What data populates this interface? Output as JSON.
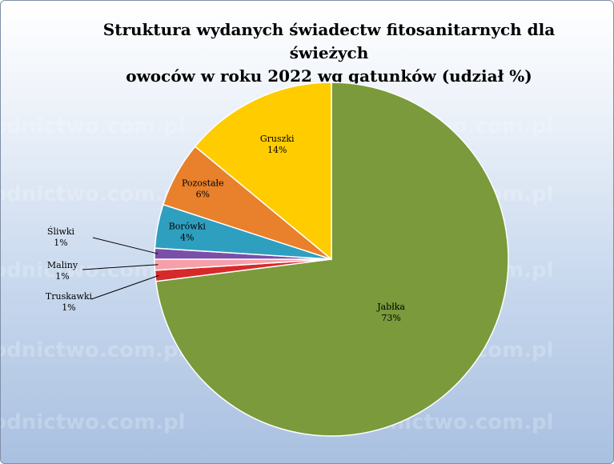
{
  "chart_data": {
    "type": "pie",
    "title": "Struktura wydanych świadectw fitosanitarnych dla świeżych owoców w roku 2022  wg gatunków (udział %)",
    "title_lines": [
      "Struktura wydanych świadectw fitosanitarnych dla świeżych",
      "owoców w roku 2022  wg gatunków (udział %)"
    ],
    "slices": [
      {
        "name": "Jabłka",
        "value": 73,
        "label": "73%",
        "color": "#7a9a3c"
      },
      {
        "name": "Truskawki",
        "value": 1,
        "label": "1%",
        "color": "#d62a2a"
      },
      {
        "name": "Maliny",
        "value": 1,
        "label": "1%",
        "color": "#f5a0a8"
      },
      {
        "name": "Śliwki",
        "value": 1,
        "label": "1%",
        "color": "#7a4fa8"
      },
      {
        "name": "Borówki",
        "value": 4,
        "label": "4%",
        "color": "#2e9fbf"
      },
      {
        "name": "Pozostałe",
        "value": 6,
        "label": "6%",
        "color": "#e8802c"
      },
      {
        "name": "Gruszki",
        "value": 14,
        "label": "14%",
        "color": "#ffcc00"
      }
    ],
    "watermark": "ogrodnictwo.com.pl"
  }
}
